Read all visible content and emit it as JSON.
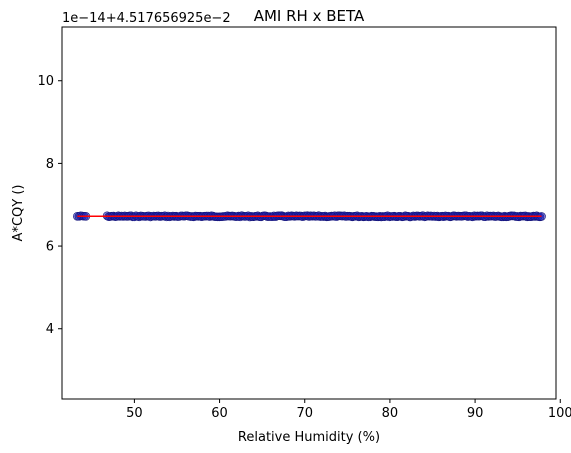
{
  "chart_data": {
    "type": "scatter",
    "title": "AMI RH x BETA",
    "xlabel": "Relative Humidity (%)",
    "ylabel": "A*CQY ()",
    "y_offset_label": "1e−14+4.517656925e−2",
    "xlim": [
      41.5,
      99.5
    ],
    "ylim": [
      2.3,
      11.3
    ],
    "x_ticks": [
      50,
      60,
      70,
      80,
      90,
      100
    ],
    "x_tick_labels": [
      "50",
      "60",
      "70",
      "80",
      "90",
      "100"
    ],
    "y_ticks": [
      4,
      6,
      8,
      10
    ],
    "y_tick_labels": [
      "4",
      "6",
      "8",
      "10"
    ],
    "grid": false,
    "legend": "none",
    "scatter_color": "#1f1fb4",
    "fit_color": "#ff0000",
    "series": [
      {
        "values_note": "",
        "x_segments": [
          [
            43.3,
            44.3
          ],
          [
            46.8,
            97.8
          ]
        ],
        "y": 6.72
      }
    ],
    "fit_line": {
      "x": [
        43.3,
        97.8
      ],
      "y": [
        6.72,
        6.72
      ]
    }
  }
}
